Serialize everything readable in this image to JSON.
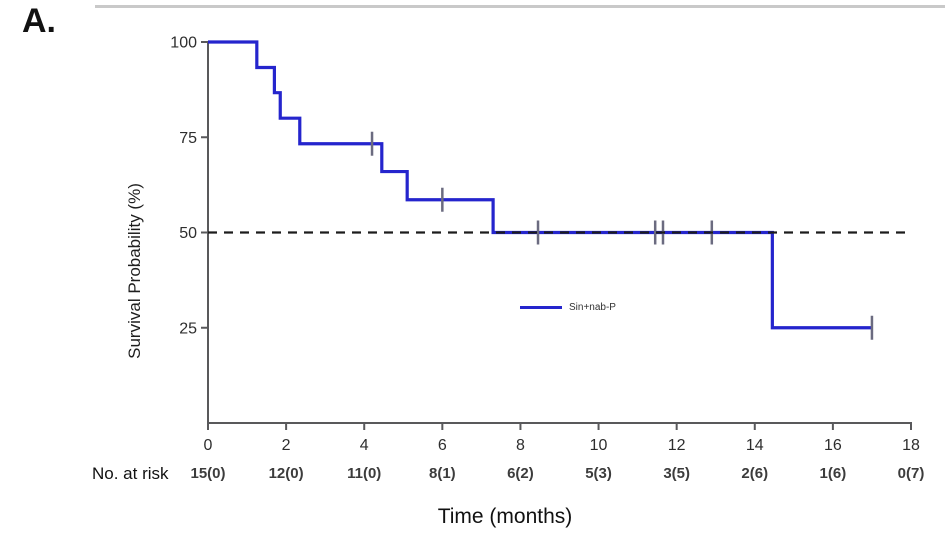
{
  "chart_data": {
    "type": "line",
    "subtype": "kaplan-meier-step-curve",
    "panel_label": "A.",
    "title": "",
    "xlabel": "Time (months)",
    "ylabel": "Survival Probability (%)",
    "xlim": [
      0,
      18
    ],
    "ylim": [
      0,
      100
    ],
    "x_ticks": [
      0,
      2,
      4,
      6,
      8,
      10,
      12,
      14,
      16,
      18
    ],
    "y_ticks": [
      100,
      75,
      50,
      25
    ],
    "grid": false,
    "axis_color": "#59595b",
    "series_color": "#2525cd",
    "censor_color": "#6b6b80",
    "legend": {
      "label": "Sin+nab-P",
      "position": "inside-center"
    },
    "reference_line": {
      "y": 50,
      "style": "dashed",
      "color": "#1c1c1c"
    },
    "km_steps": [
      {
        "t": 0,
        "s": 100
      },
      {
        "t": 1.25,
        "s": 93.3
      },
      {
        "t": 1.7,
        "s": 86.7
      },
      {
        "t": 1.85,
        "s": 80
      },
      {
        "t": 2.35,
        "s": 73.3
      },
      {
        "t": 4.45,
        "s": 66
      },
      {
        "t": 5.1,
        "s": 58.6
      },
      {
        "t": 7.3,
        "s": 50
      },
      {
        "t": 14.45,
        "s": 25
      }
    ],
    "curve_end_t": 17.0,
    "censor_marks": [
      {
        "t": 4.2,
        "s": 73.3
      },
      {
        "t": 6.0,
        "s": 58.6
      },
      {
        "t": 8.45,
        "s": 50
      },
      {
        "t": 11.45,
        "s": 50
      },
      {
        "t": 11.65,
        "s": 50
      },
      {
        "t": 12.9,
        "s": 50
      },
      {
        "t": 17.0,
        "s": 25
      }
    ],
    "risk_table": {
      "label": "No. at risk",
      "times": [
        0,
        2,
        4,
        6,
        8,
        10,
        12,
        14,
        16,
        18
      ],
      "values": [
        "15(0)",
        "12(0)",
        "11(0)",
        "8(1)",
        "6(2)",
        "5(3)",
        "3(5)",
        "2(6)",
        "1(6)",
        "0(7)"
      ]
    }
  }
}
